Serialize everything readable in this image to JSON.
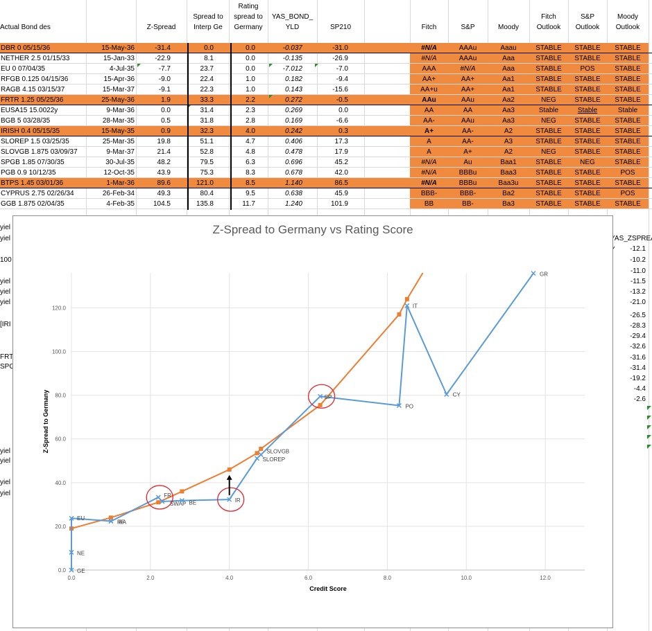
{
  "headers": {
    "desc": "Actual Bond des",
    "zspread": "Z-Spread",
    "spread_interp": [
      "Spread to",
      "Interp Ge"
    ],
    "rating_spread": [
      "Rating",
      "spread to",
      "Germany"
    ],
    "yas": [
      "YAS_BOND_",
      "YLD"
    ],
    "sp210": "SP210",
    "fitch": "Fitch",
    "sp": "S&P",
    "moody": "Moody",
    "fitch_outlook": [
      "Fitch",
      "Outlook"
    ],
    "sp_outlook": [
      "S&P",
      "Outlook"
    ],
    "moody_outlook": [
      "Moody",
      "Outlook"
    ]
  },
  "rows": [
    {
      "desc": "DBR 0 05/15/36",
      "date": "15-May-36",
      "z": "-31.4",
      "interp": "0.0",
      "rating": "0.0",
      "yld": "-0.037",
      "sp210": "-31.0",
      "fitch": "#N/A",
      "sp": "AAAu",
      "moody": "Aaau",
      "fo": "STABLE",
      "so": "STABLE",
      "mo": "STABLE",
      "orange": true
    },
    {
      "desc": "NETHER 2.5 01/15/33",
      "date": "15-Jan-33",
      "z": "-22.9",
      "interp": "8.1",
      "rating": "0.0",
      "yld": "-0.135",
      "sp210": "-26.9",
      "fitch": "#N/A",
      "sp": "AAAu",
      "moody": "Aaa",
      "fo": "STABLE",
      "so": "STABLE",
      "mo": "STABLE",
      "orange": false
    },
    {
      "desc": "EU 0 07/04/35",
      "date": "4-Jul-35",
      "z": "-7.7",
      "interp": "23.7",
      "rating": "0.0",
      "yld": "-7.012",
      "sp210": "-7.0",
      "fitch": "AAA",
      "sp": "#N/A",
      "moody": "Aaa",
      "fo": "STABLE",
      "so": "POS",
      "mo": "STABLE",
      "orange": false
    },
    {
      "desc": "RFGB 0.125 04/15/36",
      "date": "15-Apr-36",
      "z": "-9.0",
      "interp": "22.4",
      "rating": "1.0",
      "yld": "0.182",
      "sp210": "-9.4",
      "fitch": "AA+",
      "sp": "AA+",
      "moody": "Aa1",
      "fo": "STABLE",
      "so": "STABLE",
      "mo": "STABLE",
      "orange": false
    },
    {
      "desc": "RAGB 4.15 03/15/37",
      "date": "15-Mar-37",
      "z": "-9.1",
      "interp": "22.3",
      "rating": "1.0",
      "yld": "0.143",
      "sp210": "-15.6",
      "fitch": "AA+u",
      "sp": "AA+",
      "moody": "Aa1",
      "fo": "STABLE",
      "so": "STABLE",
      "mo": "STABLE",
      "orange": false
    },
    {
      "desc": "FRTR 1.25 05/25/36",
      "date": "25-May-36",
      "z": "1.9",
      "interp": "33.3",
      "rating": "2.2",
      "yld": "0.272",
      "sp210": "-0.5",
      "fitch": "AAu",
      "sp": "AAu",
      "moody": "Aa2",
      "fo": "NEG",
      "so": "STABLE",
      "mo": "STABLE",
      "orange": true
    },
    {
      "desc": "EUSA15 15.0022y",
      "date": "9-Mar-36",
      "z": "0.0",
      "interp": "31.4",
      "rating": "2.3",
      "yld": "0.269",
      "sp210": "0.0",
      "fitch": "AA",
      "sp": "AA",
      "moody": "Aa3",
      "fo": "Stable",
      "so": "Stable",
      "mo": "Stable",
      "orange": false
    },
    {
      "desc": "BGB 5 03/28/35",
      "date": "28-Mar-35",
      "z": "0.5",
      "interp": "31.8",
      "rating": "2.8",
      "yld": "0.169",
      "sp210": "-6.6",
      "fitch": "AA-",
      "sp": "AAu",
      "moody": "Aa3",
      "fo": "NEG",
      "so": "STABLE",
      "mo": "STABLE",
      "orange": false
    },
    {
      "desc": "IRISH 0.4 05/15/35",
      "date": "15-May-35",
      "z": "0.9",
      "interp": "32.3",
      "rating": "4.0",
      "yld": "0.242",
      "sp210": "0.3",
      "fitch": "A+",
      "sp": "AA-",
      "moody": "A2",
      "fo": "STABLE",
      "so": "STABLE",
      "mo": "STABLE",
      "orange": true
    },
    {
      "desc": "SLOREP 1.5 03/25/35",
      "date": "25-Mar-35",
      "z": "19.8",
      "interp": "51.1",
      "rating": "4.7",
      "yld": "0.406",
      "sp210": "17.3",
      "fitch": "A",
      "sp": "AA-",
      "moody": "A3",
      "fo": "STABLE",
      "so": "STABLE",
      "mo": "STABLE",
      "orange": false
    },
    {
      "desc": "SLOVGB 1.875 03/09/37",
      "date": "9-Mar-37",
      "z": "21.4",
      "interp": "52.8",
      "rating": "4.8",
      "yld": "0.478",
      "sp210": "17.9",
      "fitch": "A",
      "sp": "A+",
      "moody": "A2",
      "fo": "NEG",
      "so": "STABLE",
      "mo": "STABLE",
      "orange": false
    },
    {
      "desc": "SPGB 1.85 07/30/35",
      "date": "30-Jul-35",
      "z": "48.2",
      "interp": "79.5",
      "rating": "6.3",
      "yld": "0.696",
      "sp210": "45.2",
      "fitch": "#N/A",
      "sp": "Au",
      "moody": "Baa1",
      "fo": "STABLE",
      "so": "NEG",
      "mo": "STABLE",
      "orange": false
    },
    {
      "desc": "PGB 0.9 10/12/35",
      "date": "12-Oct-35",
      "z": "43.9",
      "interp": "75.3",
      "rating": "8.3",
      "yld": "0.678",
      "sp210": "42.0",
      "fitch": "#N/A",
      "sp": "BBBu",
      "moody": "Baa3",
      "fo": "STABLE",
      "so": "STABLE",
      "mo": "POS",
      "orange": false
    },
    {
      "desc": "BTPS 1.45 03/01/36",
      "date": "1-Mar-36",
      "z": "89.6",
      "interp": "121.0",
      "rating": "8.5",
      "yld": "1.140",
      "sp210": "86.5",
      "fitch": "#N/A",
      "sp": "BBBu",
      "moody": "Baa3u",
      "fo": "STABLE",
      "so": "STABLE",
      "mo": "STABLE",
      "orange": true
    },
    {
      "desc": "CYPRUS 2.75 02/26/34",
      "date": "26-Feb-34",
      "z": "49.3",
      "interp": "80.4",
      "rating": "9.5",
      "yld": "0.638",
      "sp210": "45.9",
      "fitch": "BBB-",
      "sp": "BBB-",
      "moody": "Ba2",
      "fo": "STABLE",
      "so": "STABLE",
      "mo": "POS",
      "orange": false
    },
    {
      "desc": "GGB 1.875 02/04/35",
      "date": "4-Feb-35",
      "z": "104.5",
      "interp": "135.8",
      "rating": "11.7",
      "yld": "1.240",
      "sp210": "101.9",
      "fitch": "BB",
      "sp": "BB-",
      "moody": "Ba3",
      "fo": "STABLE",
      "so": "STABLE",
      "mo": "STABLE",
      "orange": false
    }
  ],
  "left_fragments": [
    "yiel",
    "yiel",
    "100",
    "yiel",
    "yiel",
    "yiel",
    "[IRI",
    "FRT",
    "SPG",
    "yiel",
    "yiel",
    "yiel",
    "yiel"
  ],
  "right_column": {
    "header": "YAS_ZSPREA Y",
    "values": [
      "-12.1",
      "-10.2",
      "-11.0",
      "-11.5",
      "-13.2",
      "-21.0",
      "-26.5",
      "-28.3",
      "-29.4",
      "-32.6",
      "-31.6",
      "-31.4",
      "-19.2",
      "-4.4",
      "-2.6"
    ]
  },
  "chart_data": {
    "type": "scatter",
    "title": "Z-Spread to Germany vs Rating Score",
    "xlabel": "Credit Score",
    "ylabel": "Z-Spread to Germany",
    "xlim": [
      0,
      13
    ],
    "ylim": [
      0,
      136
    ],
    "xticks": [
      "0.0",
      "2.0",
      "4.0",
      "6.0",
      "8.0",
      "10.0",
      "12.0"
    ],
    "yticks": [
      "0.0",
      "20.0",
      "40.0",
      "60.0",
      "80.0",
      "100.0",
      "120.0"
    ],
    "colors": {
      "blue": "#5b9bd5",
      "orange": "#ed7d31",
      "circle": "#e0232b"
    },
    "series": [
      {
        "points": [
          {
            "x": 0.0,
            "y": 0.0,
            "label": "GE"
          },
          {
            "x": 0.0,
            "y": 8.1,
            "label": "NE"
          },
          {
            "x": 0.0,
            "y": 23.7,
            "label": "EU"
          },
          {
            "x": 1.0,
            "y": 22.4,
            "label": "RF"
          },
          {
            "x": 1.0,
            "y": 22.3,
            "label": "RA"
          },
          {
            "x": 2.2,
            "y": 33.3,
            "label": "FR"
          },
          {
            "x": 2.3,
            "y": 31.4,
            "label": "SWAP"
          },
          {
            "x": 2.8,
            "y": 31.8,
            "label": "BE"
          },
          {
            "x": 4.0,
            "y": 32.3,
            "label": "IR"
          },
          {
            "x": 4.7,
            "y": 51.1,
            "label": "SLOREP"
          },
          {
            "x": 4.8,
            "y": 52.8,
            "label": "SLOVGB"
          },
          {
            "x": 6.3,
            "y": 79.5,
            "label": "SP"
          },
          {
            "x": 8.3,
            "y": 75.3,
            "label": "PO"
          },
          {
            "x": 8.5,
            "y": 121.0,
            "label": "IT"
          },
          {
            "x": 9.5,
            "y": 80.4,
            "label": "CY"
          },
          {
            "x": 11.7,
            "y": 135.8,
            "label": "GR"
          }
        ]
      },
      {
        "points": [
          {
            "x": 0.0,
            "y": 19.0
          },
          {
            "x": 1.0,
            "y": 24.0
          },
          {
            "x": 2.2,
            "y": 31.0
          },
          {
            "x": 2.8,
            "y": 36.0
          },
          {
            "x": 4.0,
            "y": 46.0
          },
          {
            "x": 4.7,
            "y": 53.5
          },
          {
            "x": 4.8,
            "y": 55.5
          },
          {
            "x": 6.3,
            "y": 75.5
          },
          {
            "x": 8.3,
            "y": 117.0
          },
          {
            "x": 8.5,
            "y": 124.0
          },
          {
            "x": 8.9,
            "y": 136.0
          }
        ]
      }
    ],
    "circled": [
      "FR",
      "IR",
      "SP"
    ]
  }
}
